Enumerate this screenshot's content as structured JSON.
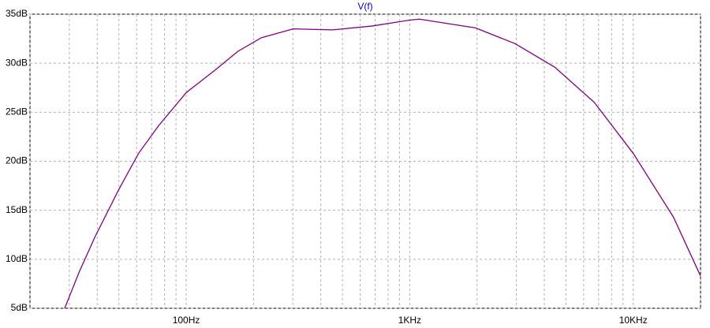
{
  "chart_data": {
    "type": "line",
    "title": "V(f)",
    "title_color": "#0000c0",
    "x_scale": "log",
    "xlim": [
      20,
      20000
    ],
    "xticks": [
      {
        "value": 100,
        "label": "100Hz"
      },
      {
        "value": 1000,
        "label": "1KHz"
      },
      {
        "value": 10000,
        "label": "10KHz"
      }
    ],
    "x_minor_ticks": [
      20,
      30,
      40,
      50,
      60,
      70,
      80,
      90,
      200,
      300,
      400,
      500,
      600,
      700,
      800,
      900,
      2000,
      3000,
      4000,
      5000,
      6000,
      7000,
      8000,
      9000,
      20000
    ],
    "ylim": [
      5,
      35
    ],
    "yticks": [
      {
        "value": 5,
        "label": "5dB"
      },
      {
        "value": 10,
        "label": "10dB"
      },
      {
        "value": 15,
        "label": "15dB"
      },
      {
        "value": 20,
        "label": "20dB"
      },
      {
        "value": 25,
        "label": "25dB"
      },
      {
        "value": 30,
        "label": "30dB"
      },
      {
        "value": 35,
        "label": "35dB"
      }
    ],
    "grid": true,
    "x": [
      28.6,
      33.2,
      39.1,
      49.9,
      61.2,
      75.1,
      100,
      133,
      170,
      217,
      301,
      453,
      681,
      1000,
      1103,
      1969,
      2958,
      4455,
      6697,
      10000,
      15130,
      20000
    ],
    "series": [
      {
        "name": "V(f)",
        "color": "#800080",
        "values": [
          5.0,
          8.7,
          12.3,
          17.1,
          20.8,
          23.6,
          27.0,
          29.2,
          31.2,
          32.6,
          33.5,
          33.4,
          33.8,
          34.4,
          34.5,
          33.6,
          32.0,
          29.6,
          26.0,
          20.8,
          14.3,
          8.3
        ]
      }
    ]
  }
}
